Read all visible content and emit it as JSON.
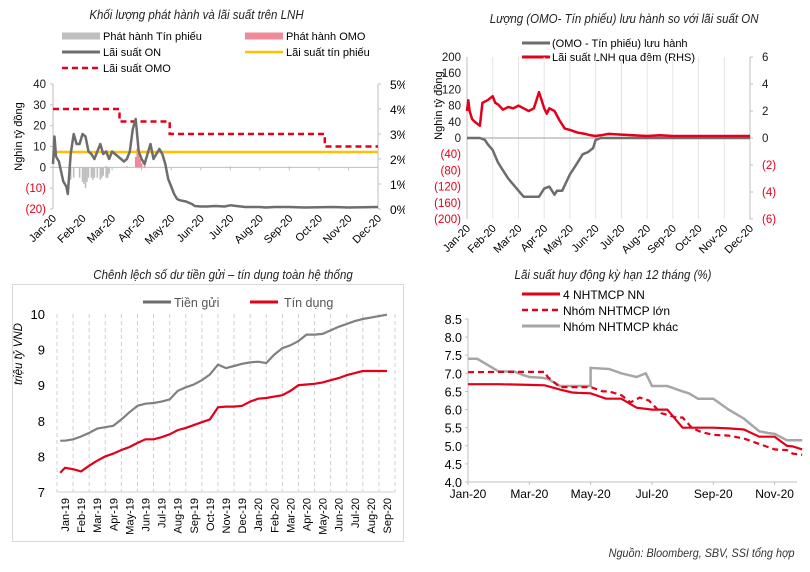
{
  "source": "Nguồn:  Bloomberg, SBV, SSI tổng hợp",
  "colors": {
    "red": "#e2001a",
    "dark_gray": "#6d6d6d",
    "light_gray": "#a6a6a6",
    "bar_gray": "#bfbfbf",
    "bar_pink": "#f08a9a",
    "gold": "#ffc000",
    "neg_label": "#e2001a"
  },
  "chart_data": [
    {
      "id": "issuance",
      "type": "line",
      "title": "Khối lượng phát hành và lãi suất trên LNH",
      "ylabel": "Nghìn tỷ đồng",
      "ylim": [
        -20,
        40
      ],
      "y2lim": [
        0,
        5
      ],
      "yticks": [
        "40",
        "30",
        "20",
        "10",
        "0",
        "(10)",
        "(20)"
      ],
      "y2ticks": [
        "5%",
        "4%",
        "3%",
        "2%",
        "1%",
        "0%"
      ],
      "x_categories": [
        "Jan-20",
        "Feb-20",
        "Mar-20",
        "Apr-20",
        "May-20",
        "Jun-20",
        "Jul-20",
        "Aug-20",
        "Sep-20",
        "Oct-20",
        "Nov-20",
        "Dec-20"
      ],
      "legend": [
        {
          "label": "Phát hành  Tín phiếu",
          "style": "bar-gray"
        },
        {
          "label": "Phát hành OMO",
          "style": "bar-pink"
        },
        {
          "label": "Lãi suất ON",
          "style": "line-darkgray"
        },
        {
          "label": "Lãi suất tín phiếu",
          "style": "line-gold"
        },
        {
          "label": "Lãi suất OMO",
          "style": "dash-red"
        }
      ],
      "series": [
        {
          "name": "Lãi suất ON",
          "axis": "right",
          "x": [
            0,
            0.05,
            0.1,
            0.2,
            0.35,
            0.45,
            0.5,
            0.6,
            0.7,
            0.8,
            0.9,
            1.0,
            1.1,
            1.2,
            1.3,
            1.4,
            1.5,
            1.6,
            1.7,
            1.8,
            1.9,
            2.0,
            2.1,
            2.2,
            2.3,
            2.4,
            2.5,
            2.6,
            2.7,
            2.8,
            2.9,
            3.0,
            3.1,
            3.2,
            3.3,
            3.4,
            3.5,
            3.6,
            3.7,
            3.8,
            3.9,
            4.0,
            4.1,
            4.2,
            4.3,
            4.5,
            4.7,
            4.8,
            5.0,
            5.2,
            5.5,
            5.8,
            6.0,
            6.5,
            7.0,
            7.2,
            7.5,
            8.0,
            8.5,
            9.0,
            9.5,
            10.0,
            10.5,
            11.0
          ],
          "values": [
            1.8,
            2.9,
            2.1,
            1.9,
            1.1,
            0.9,
            0.6,
            2.2,
            3.0,
            2.6,
            2.6,
            3.0,
            2.9,
            2.3,
            2.2,
            2.0,
            2.3,
            2.6,
            2.2,
            2.3,
            2.0,
            2.3,
            2.2,
            2.1,
            2.0,
            1.9,
            2.0,
            2.3,
            3.2,
            3.6,
            2.3,
            2.0,
            1.8,
            2.2,
            2.6,
            2.0,
            2.2,
            2.4,
            2.2,
            1.8,
            1.2,
            0.9,
            0.6,
            0.4,
            0.35,
            0.3,
            0.2,
            0.12,
            0.1,
            0.1,
            0.12,
            0.1,
            0.15,
            0.08,
            0.08,
            0.06,
            0.08,
            0.08,
            0.06,
            0.07,
            0.08,
            0.06,
            0.07,
            0.08
          ]
        },
        {
          "name": "Lãi suất tín phiếu",
          "axis": "right",
          "x": [
            0,
            11.0
          ],
          "values": [
            2.28,
            2.28
          ]
        },
        {
          "name": "Lãi suất OMO",
          "axis": "right",
          "x": [
            0,
            2.25,
            2.25,
            3.95,
            3.95,
            9.2,
            9.2,
            11.0
          ],
          "values": [
            4.0,
            4.0,
            3.5,
            3.5,
            3.0,
            3.0,
            2.5,
            2.5
          ]
        },
        {
          "name": "Phát hành  Tín phiếu",
          "type": "bar",
          "axis": "left",
          "x": [
            0.55,
            0.6,
            0.7,
            0.9,
            1.0,
            1.05,
            1.1,
            1.15,
            1.2,
            1.3,
            1.35,
            1.4,
            1.5,
            1.6,
            1.65,
            1.7,
            1.8,
            1.85,
            1.9
          ],
          "values": [
            -5,
            -6,
            -5,
            -5,
            -7,
            -8,
            -10,
            -7,
            -5,
            -5,
            -6,
            -5,
            -5,
            -6,
            -5,
            -4,
            -5,
            -5,
            -3
          ]
        },
        {
          "name": "Phát hành OMO",
          "type": "bar",
          "axis": "left",
          "x": [
            1.8,
            2.5,
            2.8,
            2.85,
            2.9,
            2.95,
            3.0,
            3.1,
            6.0,
            8.0
          ],
          "values": [
            0.5,
            0.5,
            5,
            9,
            7,
            4,
            2,
            1,
            0.3,
            0.3
          ]
        }
      ]
    },
    {
      "id": "omo-vs-on",
      "type": "line",
      "title": "Lượng (OMO- Tín phiếu) lưu hành so với lãi suất ON",
      "ylabel": "Nghìn tỷ đồng",
      "ylim": [
        -200,
        200
      ],
      "y2lim": [
        -6,
        6
      ],
      "yticks": [
        "200",
        "160",
        "120",
        "80",
        "40",
        "0",
        "(40)",
        "(80)",
        "(120)",
        "(160)",
        "(200)"
      ],
      "y2ticks": [
        "6",
        "4",
        "2",
        "0",
        "(2)",
        "(4)",
        "(6)"
      ],
      "x_categories": [
        "Jan-20",
        "Feb-20",
        "Mar-20",
        "Apr-20",
        "May-20",
        "Jun-20",
        "Jul-20",
        "Aug-20",
        "Sep-20",
        "Oct-20",
        "Nov-20",
        "Dec-20"
      ],
      "legend": [
        {
          "label": "(OMO - Tín  phiếu)  lưu hành",
          "style": "line-darkgray"
        },
        {
          "label": "Lãi suất LNH  qua đêm (RHS)",
          "style": "line-red"
        }
      ],
      "series": [
        {
          "name": "(OMO - Tín  phiếu)  lưu hành",
          "axis": "left",
          "x": [
            0,
            0.5,
            0.7,
            0.8,
            1.0,
            1.2,
            1.4,
            1.6,
            1.8,
            2.0,
            2.2,
            2.5,
            2.8,
            3.0,
            3.2,
            3.4,
            3.5,
            3.7,
            4.0,
            4.2,
            4.5,
            4.7,
            4.9,
            5.0,
            5.2,
            11.0
          ],
          "values": [
            0,
            0,
            -5,
            -15,
            -30,
            -60,
            -80,
            -100,
            -115,
            -130,
            -145,
            -145,
            -145,
            -125,
            -120,
            -140,
            -130,
            -130,
            -90,
            -70,
            -40,
            -35,
            -25,
            -5,
            0,
            0
          ]
        },
        {
          "name": "Lãi suất LNH  qua đêm (RHS)",
          "axis": "right",
          "x": [
            0,
            0.05,
            0.1,
            0.2,
            0.3,
            0.5,
            0.6,
            0.8,
            1.0,
            1.1,
            1.2,
            1.4,
            1.6,
            1.8,
            2.0,
            2.2,
            2.4,
            2.6,
            2.8,
            3.0,
            3.1,
            3.2,
            3.4,
            3.6,
            3.8,
            4.0,
            4.3,
            4.6,
            4.8,
            5.0,
            5.2,
            5.5,
            6.0,
            6.5,
            7.0,
            7.5,
            8.0,
            9.0,
            10.0,
            11.0
          ],
          "values": [
            2.0,
            2.8,
            2.0,
            1.4,
            1.2,
            0.9,
            2.6,
            2.8,
            3.1,
            2.6,
            2.5,
            2.1,
            2.3,
            2.2,
            2.4,
            2.2,
            2.0,
            2.2,
            3.4,
            2.2,
            1.8,
            2.2,
            2.0,
            1.3,
            0.7,
            0.6,
            0.4,
            0.3,
            0.2,
            0.15,
            0.2,
            0.3,
            0.25,
            0.2,
            0.15,
            0.2,
            0.15,
            0.15,
            0.15,
            0.15
          ]
        }
      ]
    },
    {
      "id": "deposit-credit",
      "type": "line",
      "title": "Chênh lệch số dư tiền gửi – tín dụng toàn hệ thống",
      "ylabel": "triệu tỷ VND",
      "ylim": [
        7.5,
        10
      ],
      "yticks": [
        "10",
        "9",
        "9",
        "8",
        "8",
        "7"
      ],
      "ytick_values": [
        10,
        9.5,
        9,
        8.5,
        8,
        7.5
      ],
      "categories": [
        "Jan-19",
        "Feb-19",
        "Mar-19",
        "Apr-19",
        "May-19",
        "Jun-19",
        "Jul-19",
        "Aug-19",
        "Sep-19",
        "Oct-19",
        "Nov-19",
        "Dec-19",
        "Jan-20",
        "Feb-20",
        "Mar-20",
        "Apr-20",
        "May-20",
        "Jun-20",
        "Jul-20",
        "Aug-20",
        "Sep-20"
      ],
      "legend": [
        {
          "label": "Tiền gửi",
          "style": "line-darkgray"
        },
        {
          "label": "Tín dụng",
          "style": "line-red"
        }
      ],
      "series": [
        {
          "name": "Tiền gửi",
          "x": [
            -0.3,
            0,
            0.5,
            1,
            1.5,
            2,
            2.5,
            3,
            3.5,
            4,
            4.5,
            5,
            5.5,
            6,
            6.5,
            7,
            7.5,
            8,
            8.5,
            9,
            9.5,
            10,
            10.5,
            11,
            11.5,
            12,
            12.5,
            13,
            13.5,
            14,
            14.5,
            15,
            15.5,
            16,
            16.5,
            17,
            17.5,
            18,
            18.5,
            19,
            19.5,
            20
          ],
          "values": [
            8.22,
            8.22,
            8.24,
            8.28,
            8.33,
            8.39,
            8.41,
            8.43,
            8.52,
            8.62,
            8.71,
            8.74,
            8.75,
            8.77,
            8.8,
            8.92,
            8.97,
            9.01,
            9.07,
            9.15,
            9.29,
            9.24,
            9.27,
            9.3,
            9.32,
            9.33,
            9.31,
            9.43,
            9.52,
            9.56,
            9.62,
            9.71,
            9.71,
            9.72,
            9.77,
            9.82,
            9.86,
            9.9,
            9.93,
            9.95,
            9.97,
            9.99
          ]
        },
        {
          "name": "Tín dụng",
          "x": [
            -0.3,
            0,
            0.5,
            1,
            1.5,
            2,
            2.5,
            3,
            3.5,
            4,
            4.5,
            5,
            5.5,
            6,
            6.5,
            7,
            7.5,
            8,
            8.5,
            9,
            9.5,
            10,
            10.5,
            11,
            11.5,
            12,
            12.5,
            13,
            13.5,
            14,
            14.5,
            15,
            15.5,
            16,
            16.5,
            17,
            17.5,
            18,
            18.5,
            19,
            19.5,
            20
          ],
          "values": [
            7.77,
            7.84,
            7.82,
            7.79,
            7.87,
            7.94,
            8.0,
            8.04,
            8.09,
            8.13,
            8.19,
            8.24,
            8.24,
            8.27,
            8.31,
            8.37,
            8.4,
            8.44,
            8.48,
            8.52,
            8.69,
            8.7,
            8.7,
            8.71,
            8.77,
            8.81,
            8.82,
            8.84,
            8.86,
            8.92,
            9.0,
            9.01,
            9.02,
            9.04,
            9.07,
            9.1,
            9.14,
            9.17,
            9.2,
            9.2,
            9.2,
            9.2
          ]
        }
      ]
    },
    {
      "id": "deposit-rate-12m",
      "type": "line",
      "title": "Lãi suất huy động kỳ hạn 12 tháng (%)",
      "ylim": [
        4.0,
        8.5
      ],
      "yticks": [
        "8.5",
        "8.0",
        "7.5",
        "7.0",
        "6.5",
        "6.0",
        "5.5",
        "5.0",
        "4.5",
        "4.0"
      ],
      "x_categories": [
        "Jan-20",
        "Mar-20",
        "May-20",
        "Jul-20",
        "Sep-20",
        "Nov-20"
      ],
      "legend": [
        {
          "label": "4 NHTMCP NN",
          "style": "line-red"
        },
        {
          "label": "Nhóm NHTMCP lớn",
          "style": "dash-red"
        },
        {
          "label": "Nhóm NHTMCP khác",
          "style": "line-lightgray"
        }
      ],
      "series": [
        {
          "name": "4 NHTMCP NN",
          "x": [
            0,
            1,
            2,
            2.5,
            3,
            3.4,
            3.6,
            4.0,
            4.5,
            5.0,
            5.5,
            6.0,
            6.5,
            7.0,
            8.0,
            8.5,
            9.0,
            9.5,
            10.0,
            10.4,
            10.6,
            10.9
          ],
          "values": [
            6.7,
            6.7,
            6.68,
            6.67,
            6.55,
            6.47,
            6.46,
            6.45,
            6.3,
            6.3,
            6.05,
            6.0,
            6.0,
            5.5,
            5.5,
            5.48,
            5.45,
            5.25,
            5.25,
            5.0,
            4.98,
            4.9
          ]
        },
        {
          "name": "Nhóm NHTMCP lớn",
          "x": [
            0,
            1,
            2,
            2.5,
            2.6,
            3.0,
            3.5,
            4.0,
            4.4,
            4.6,
            5.0,
            5.3,
            5.6,
            5.9,
            6.3,
            6.8,
            7.0,
            7.3,
            7.6,
            8.0,
            8.5,
            9.0,
            9.5,
            10.0,
            10.4,
            10.6,
            10.9
          ],
          "values": [
            7.03,
            7.04,
            7.04,
            7.04,
            6.9,
            6.62,
            6.62,
            6.62,
            6.5,
            6.5,
            6.4,
            6.2,
            6.33,
            6.25,
            5.9,
            5.78,
            5.78,
            5.5,
            5.38,
            5.3,
            5.28,
            5.2,
            5.05,
            4.9,
            4.88,
            4.78,
            4.75
          ]
        },
        {
          "name": "Nhóm NHTMCP khác",
          "x": [
            0,
            0.3,
            1.0,
            1.5,
            1.8,
            2.0,
            2.4,
            2.6,
            3.0,
            3.5,
            4.0,
            4.0,
            4.6,
            5.0,
            5.5,
            5.8,
            6.0,
            6.5,
            7.0,
            7.2,
            7.5,
            8.0,
            8.5,
            9.0,
            9.5,
            9.8,
            10.0,
            10.4,
            10.9
          ],
          "values": [
            7.4,
            7.4,
            7.05,
            7.05,
            6.95,
            6.9,
            6.88,
            6.85,
            6.65,
            6.65,
            6.65,
            7.15,
            7.12,
            7.0,
            6.9,
            7.0,
            6.65,
            6.65,
            6.5,
            6.45,
            6.3,
            6.3,
            6.0,
            5.75,
            5.4,
            5.35,
            5.33,
            5.15,
            5.15
          ]
        }
      ]
    }
  ]
}
